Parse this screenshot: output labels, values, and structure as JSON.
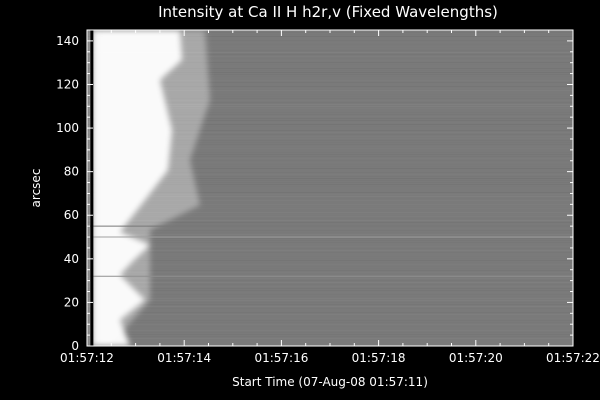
{
  "chart_data": {
    "type": "heatmap",
    "title": "Intensity at Ca II H h2r,v (Fixed Wavelengths)",
    "xlabel": "Start Time (07-Aug-08 01:57:11)",
    "ylabel": "arcsec",
    "x_ticks": [
      "01:57:12",
      "01:57:14",
      "01:57:16",
      "01:57:18",
      "01:57:20",
      "01:57:22"
    ],
    "y_ticks": [
      0,
      20,
      40,
      60,
      80,
      100,
      120,
      140
    ],
    "ylim": [
      0,
      145
    ],
    "xlim_seconds": [
      12,
      22
    ],
    "colormap": "grayscale",
    "background_level": "#7a7a7a",
    "features": [
      {
        "kind": "vertical-dark-line",
        "x_seconds": 12.1
      },
      {
        "kind": "bright-transient-region",
        "x_seconds": [
          12.0,
          13.4
        ]
      },
      {
        "kind": "horizontal-line",
        "y": 55,
        "color": "#777777"
      },
      {
        "kind": "horizontal-line",
        "y": 50,
        "color": "#a0a0a0"
      },
      {
        "kind": "horizontal-line",
        "y": 32,
        "color": "#909090"
      }
    ]
  }
}
